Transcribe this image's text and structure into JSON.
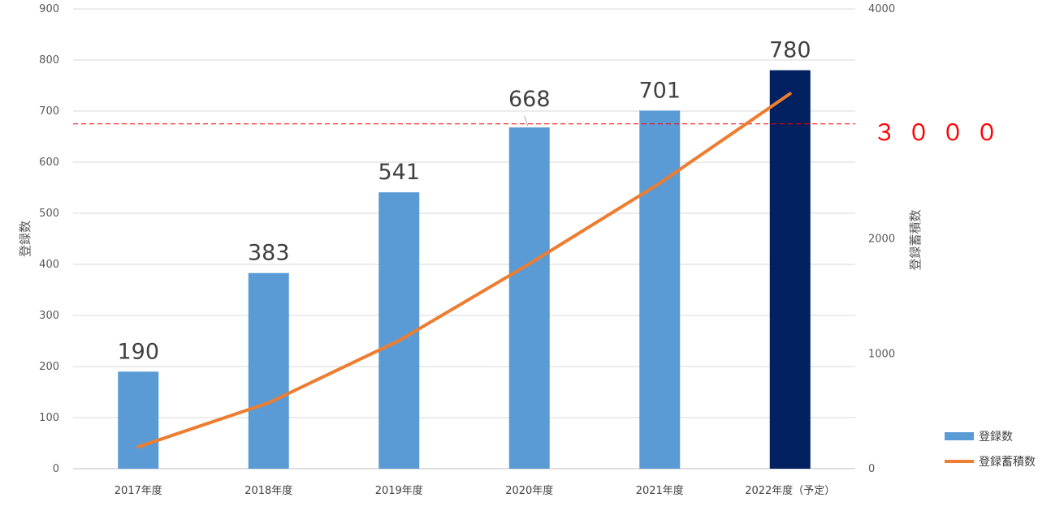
{
  "chart_data": {
    "type": "bar",
    "categories": [
      "2017年度",
      "2018年度",
      "2019年度",
      "2020年度",
      "2021年度",
      "2022年度（予定）"
    ],
    "series": [
      {
        "name": "登録数",
        "type": "bar",
        "axis": "left",
        "values": [
          190,
          383,
          541,
          668,
          701,
          780
        ],
        "color": "#5b9bd5",
        "highlight_last_color": "#002060"
      },
      {
        "name": "登録蓄積数",
        "type": "line",
        "axis": "right",
        "values": [
          190,
          573,
          1114,
          1782,
          2483,
          3263
        ],
        "color": "#ed7d31"
      }
    ],
    "data_labels": [
      "190",
      "383",
      "541",
      "668",
      "701",
      "780"
    ],
    "ylabel": "登録数",
    "y2label": "登録蓄積数",
    "ylim": [
      0,
      900
    ],
    "y2lim": [
      0,
      4000
    ],
    "y_ticks": [
      "0",
      "100",
      "200",
      "300",
      "400",
      "500",
      "600",
      "700",
      "800",
      "900"
    ],
    "y2_ticks": [
      "0",
      "1000",
      "2000",
      "3000",
      "4000"
    ],
    "y2_tick_labels_shown": [
      "0",
      "1000",
      "2000",
      "",
      "4000"
    ],
    "reference_line": {
      "axis": "right",
      "value": 3000,
      "label": "３０００",
      "color": "#ff0000",
      "style": "dashed"
    },
    "grid": true,
    "legend_position": "bottom-right"
  }
}
